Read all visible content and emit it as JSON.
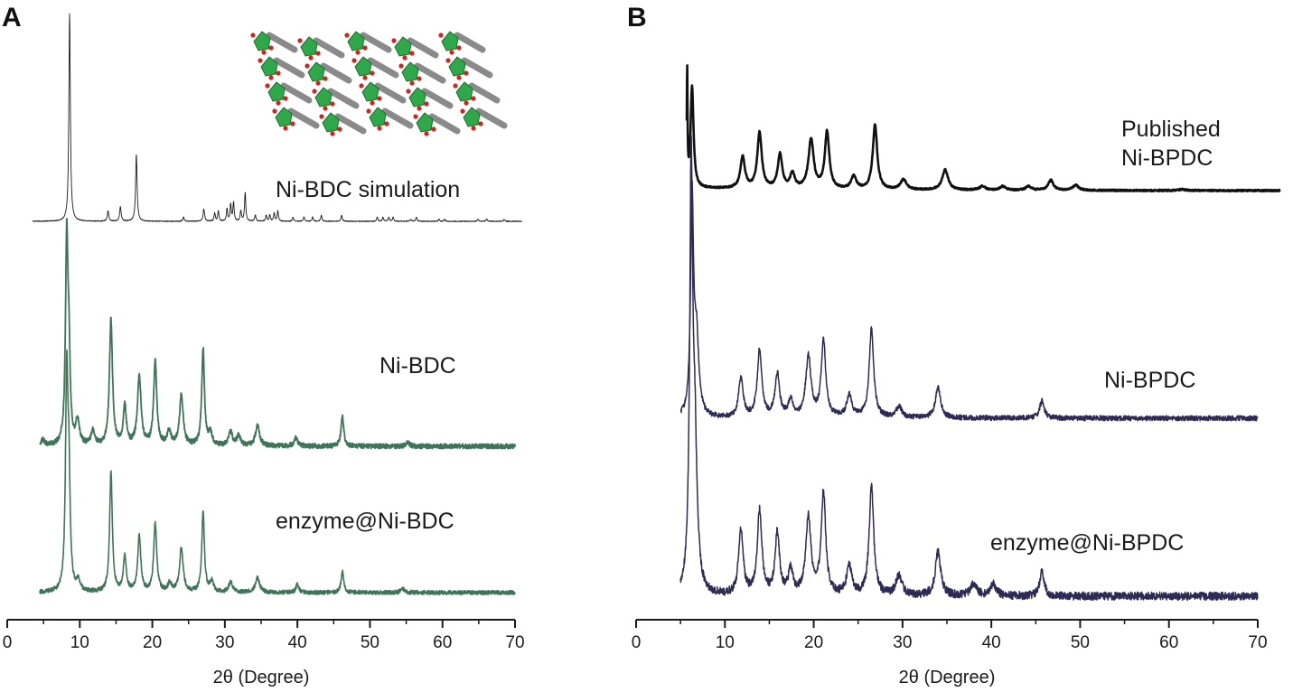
{
  "chart_data": [
    {
      "panel": "A",
      "type": "line",
      "xlabel": "2θ (Degree)",
      "ylabel": "",
      "xlim": [
        0,
        70
      ],
      "x_ticks": [
        0,
        10,
        20,
        30,
        40,
        50,
        60,
        70
      ],
      "inset": "Ni-BDC crystal structure",
      "series": [
        {
          "name": "Ni-BDC simulation",
          "color": "#1a1a1a",
          "range": [
            3.5,
            71
          ],
          "noise": 0.002,
          "peaks": [
            [
              8.6,
              1.0,
              0.12
            ],
            [
              13.9,
              0.05,
              0.12
            ],
            [
              15.6,
              0.07,
              0.12
            ],
            [
              17.8,
              0.32,
              0.12
            ],
            [
              24.3,
              0.02,
              0.1
            ],
            [
              27.1,
              0.06,
              0.12
            ],
            [
              28.6,
              0.04,
              0.1
            ],
            [
              29.1,
              0.05,
              0.1
            ],
            [
              30.3,
              0.06,
              0.1
            ],
            [
              30.8,
              0.08,
              0.1
            ],
            [
              31.2,
              0.09,
              0.1
            ],
            [
              32.2,
              0.05,
              0.1
            ],
            [
              32.8,
              0.14,
              0.1
            ],
            [
              34.2,
              0.03,
              0.1
            ],
            [
              35.7,
              0.03,
              0.1
            ],
            [
              36.2,
              0.03,
              0.1
            ],
            [
              36.8,
              0.04,
              0.1
            ],
            [
              37.3,
              0.05,
              0.1
            ],
            [
              39.4,
              0.02,
              0.1
            ],
            [
              40.9,
              0.02,
              0.1
            ],
            [
              42.1,
              0.02,
              0.1
            ],
            [
              43.3,
              0.03,
              0.1
            ],
            [
              46.1,
              0.03,
              0.1
            ],
            [
              51.0,
              0.02,
              0.1
            ],
            [
              51.8,
              0.02,
              0.1
            ],
            [
              52.6,
              0.02,
              0.1
            ],
            [
              53.2,
              0.02,
              0.1
            ],
            [
              55.6,
              0.01,
              0.1
            ],
            [
              56.4,
              0.02,
              0.1
            ],
            [
              59.5,
              0.01,
              0.1
            ],
            [
              60.3,
              0.01,
              0.1
            ],
            [
              64.9,
              0.01,
              0.1
            ],
            [
              66.1,
              0.01,
              0.1
            ],
            [
              68.5,
              0.01,
              0.1
            ]
          ]
        },
        {
          "name": "Ni-BDC",
          "color": "#3e7558",
          "range": [
            4.5,
            70
          ],
          "noise": 0.012,
          "peaks": [
            [
              4.9,
              0.03,
              0.3
            ],
            [
              8.2,
              1.0,
              0.2
            ],
            [
              8.5,
              0.4,
              0.2
            ],
            [
              9.7,
              0.12,
              0.3
            ],
            [
              11.8,
              0.07,
              0.3
            ],
            [
              14.3,
              0.63,
              0.25
            ],
            [
              16.2,
              0.2,
              0.25
            ],
            [
              18.2,
              0.34,
              0.3
            ],
            [
              20.4,
              0.42,
              0.25
            ],
            [
              22.3,
              0.07,
              0.3
            ],
            [
              24.0,
              0.25,
              0.3
            ],
            [
              27.0,
              0.48,
              0.22
            ],
            [
              28.0,
              0.06,
              0.3
            ],
            [
              30.8,
              0.07,
              0.3
            ],
            [
              31.9,
              0.05,
              0.3
            ],
            [
              34.5,
              0.1,
              0.35
            ],
            [
              39.8,
              0.04,
              0.3
            ],
            [
              46.2,
              0.15,
              0.22
            ],
            [
              55.2,
              0.02,
              0.3
            ]
          ]
        },
        {
          "name": "enzyme@Ni-BDC",
          "color": "#3e7558",
          "range": [
            4.5,
            70
          ],
          "noise": 0.01,
          "peaks": [
            [
              8.2,
              1.0,
              0.2
            ],
            [
              8.5,
              0.5,
              0.2
            ],
            [
              9.8,
              0.05,
              0.3
            ],
            [
              14.3,
              0.58,
              0.22
            ],
            [
              16.2,
              0.17,
              0.25
            ],
            [
              18.2,
              0.27,
              0.25
            ],
            [
              20.4,
              0.33,
              0.25
            ],
            [
              22.4,
              0.04,
              0.3
            ],
            [
              24.0,
              0.21,
              0.3
            ],
            [
              27.0,
              0.38,
              0.22
            ],
            [
              28.2,
              0.05,
              0.3
            ],
            [
              30.8,
              0.05,
              0.3
            ],
            [
              34.5,
              0.07,
              0.35
            ],
            [
              40.0,
              0.04,
              0.25
            ],
            [
              46.2,
              0.1,
              0.22
            ],
            [
              54.5,
              0.02,
              0.3
            ]
          ]
        }
      ],
      "annotations": [
        "Ni-BDC simulation",
        "Ni-BDC",
        "enzyme@Ni-BDC"
      ]
    },
    {
      "panel": "B",
      "type": "line",
      "xlabel": "2θ (Degree)",
      "ylabel": "",
      "xlim": [
        0,
        70
      ],
      "x_ticks": [
        0,
        10,
        20,
        30,
        40,
        50,
        60,
        70
      ],
      "series": [
        {
          "name": "Published Ni-BPDC",
          "color": "#111111",
          "range": [
            5.7,
            72.5
          ],
          "noise": 0.006,
          "peaks": [
            [
              5.75,
              0.9,
              0.05
            ],
            [
              6.3,
              0.8,
              0.2
            ],
            [
              12.0,
              0.25,
              0.3
            ],
            [
              13.9,
              0.44,
              0.3
            ],
            [
              16.2,
              0.27,
              0.3
            ],
            [
              17.6,
              0.12,
              0.3
            ],
            [
              19.7,
              0.39,
              0.35
            ],
            [
              21.5,
              0.45,
              0.3
            ],
            [
              24.5,
              0.1,
              0.35
            ],
            [
              26.9,
              0.51,
              0.3
            ],
            [
              30.1,
              0.08,
              0.4
            ],
            [
              34.8,
              0.16,
              0.4
            ],
            [
              39.0,
              0.03,
              0.4
            ],
            [
              41.3,
              0.03,
              0.4
            ],
            [
              44.2,
              0.03,
              0.4
            ],
            [
              46.7,
              0.08,
              0.35
            ],
            [
              49.5,
              0.04,
              0.4
            ],
            [
              61.5,
              0.01,
              0.4
            ]
          ]
        },
        {
          "name": "Ni-BPDC",
          "color": "#2e2a55",
          "range": [
            5.0,
            70
          ],
          "noise": 0.012,
          "peaks": [
            [
              6.3,
              1.0,
              0.2
            ],
            [
              6.8,
              0.35,
              0.3
            ],
            [
              11.8,
              0.18,
              0.3
            ],
            [
              13.9,
              0.31,
              0.3
            ],
            [
              15.9,
              0.2,
              0.3
            ],
            [
              17.4,
              0.08,
              0.3
            ],
            [
              19.4,
              0.28,
              0.35
            ],
            [
              21.1,
              0.35,
              0.3
            ],
            [
              24.0,
              0.1,
              0.35
            ],
            [
              26.5,
              0.41,
              0.3
            ],
            [
              29.6,
              0.05,
              0.4
            ],
            [
              34.0,
              0.14,
              0.35
            ],
            [
              45.7,
              0.08,
              0.3
            ]
          ]
        },
        {
          "name": "enzyme@Ni-BPDC",
          "color": "#2e2a55",
          "range": [
            5.0,
            70
          ],
          "noise": 0.01,
          "peaks": [
            [
              6.2,
              1.0,
              0.2
            ],
            [
              6.6,
              0.35,
              0.3
            ],
            [
              11.8,
              0.16,
              0.3
            ],
            [
              13.9,
              0.21,
              0.3
            ],
            [
              15.9,
              0.15,
              0.3
            ],
            [
              17.4,
              0.06,
              0.3
            ],
            [
              19.4,
              0.19,
              0.35
            ],
            [
              21.1,
              0.25,
              0.3
            ],
            [
              24.0,
              0.07,
              0.35
            ],
            [
              26.5,
              0.27,
              0.3
            ],
            [
              29.6,
              0.05,
              0.4
            ],
            [
              34.0,
              0.11,
              0.35
            ],
            [
              38.0,
              0.03,
              0.4
            ],
            [
              40.2,
              0.03,
              0.4
            ],
            [
              45.7,
              0.06,
              0.3
            ]
          ]
        }
      ],
      "annotations": [
        "Published\nNi-BPDC",
        "Ni-BPDC",
        "enzyme@Ni-BPDC"
      ]
    }
  ],
  "labels": {
    "panel_a": "A",
    "panel_b": "B",
    "sim": "Ni-BDC simulation",
    "nibdc": "Ni-BDC",
    "enz_bdc": "enzyme@Ni-BDC",
    "pub_line1": "Published",
    "pub_line2": "Ni-BPDC",
    "nibpdc": "Ni-BPDC",
    "enz_bpdc": "enzyme@Ni-BPDC",
    "xlabel_a": "2θ (Degree)",
    "xlabel_b": "2θ (Degree)"
  },
  "inset_colors": {
    "green": "#2fa84a",
    "grey": "#8a8a8a",
    "red": "#d2231c"
  }
}
